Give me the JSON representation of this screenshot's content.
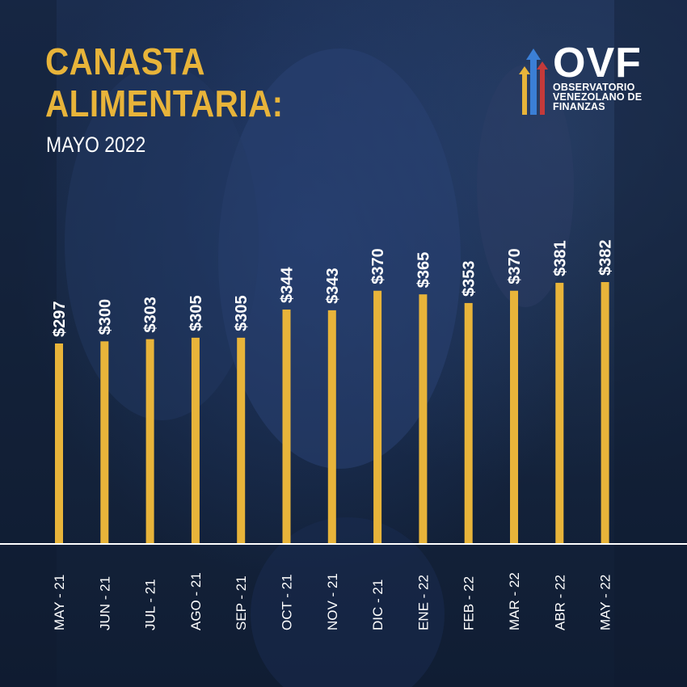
{
  "header": {
    "title_line1": "CANASTA",
    "title_line2": "ALIMENTARIA:",
    "subtitle": "MAYO 2022"
  },
  "logo": {
    "brand": "OVF",
    "line1": "OBSERVATORIO",
    "line2": "VENEZOLANO DE",
    "line3": "FINANZAS",
    "icon": "rising-arrows-icon"
  },
  "colors": {
    "bar": "#e8b43a",
    "title": "#e8b43a",
    "text": "#ffffff",
    "background": "#162640"
  },
  "chart_data": {
    "type": "bar",
    "categories": [
      "MAY - 21",
      "JUN - 21",
      "JUL - 21",
      "AGO - 21",
      "SEP - 21",
      "OCT - 21",
      "NOV - 21",
      "DIC - 21",
      "ENE - 22",
      "FEB - 22",
      "MAR - 22",
      "ABR - 22",
      "MAY - 22"
    ],
    "values": [
      297,
      300,
      303,
      305,
      305,
      344,
      343,
      370,
      365,
      353,
      370,
      381,
      382
    ],
    "value_labels": [
      "$297",
      "$300",
      "$303",
      "$305",
      "$305",
      "$344",
      "$343",
      "$370",
      "$365",
      "$353",
      "$370",
      "$381",
      "$382"
    ],
    "title": "CANASTA ALIMENTARIA:",
    "subtitle": "MAYO 2022",
    "ylim": [
      0,
      382
    ],
    "grid": false,
    "legend": "none"
  }
}
